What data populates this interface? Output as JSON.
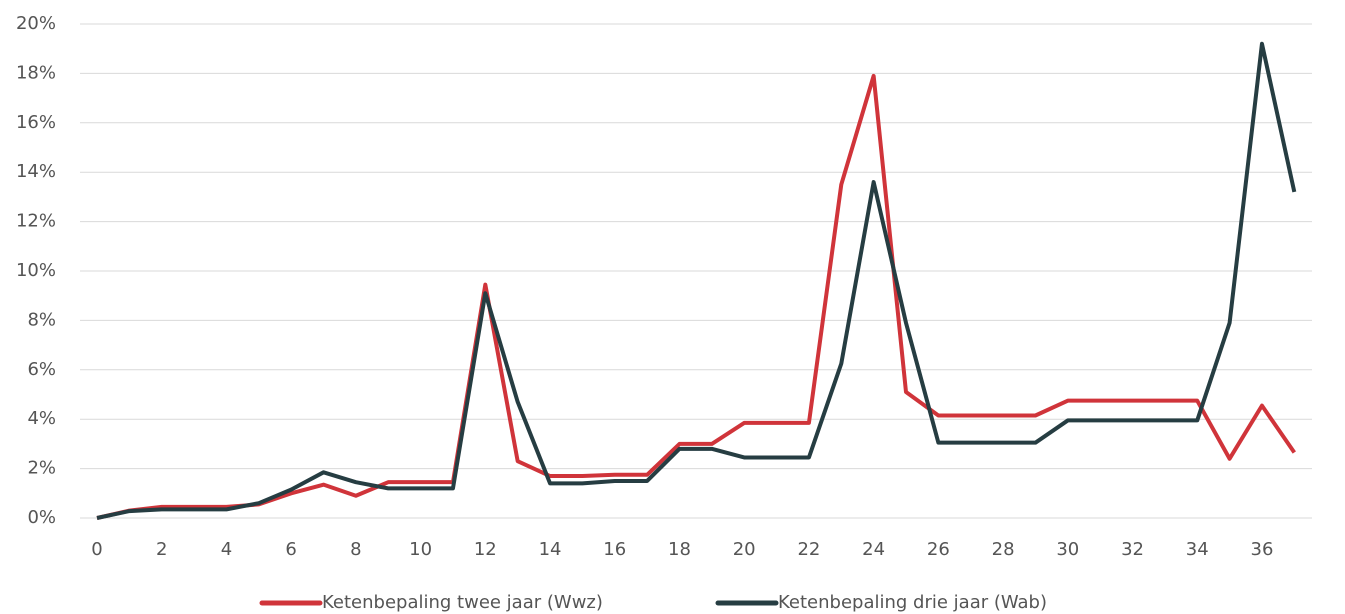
{
  "chart_data": {
    "type": "line",
    "x": [
      0,
      1,
      2,
      3,
      4,
      5,
      6,
      7,
      8,
      9,
      10,
      11,
      12,
      13,
      14,
      15,
      16,
      17,
      18,
      19,
      20,
      21,
      22,
      23,
      24,
      25,
      26,
      27,
      28,
      29,
      30,
      31,
      32,
      33,
      34,
      35,
      36,
      37
    ],
    "series": [
      {
        "name": "Ketenbepaling twee jaar (Wwz)",
        "color": "#d0343a",
        "values": [
          0,
          0.3,
          0.45,
          0.45,
          0.45,
          0.55,
          1.0,
          1.35,
          0.9,
          1.45,
          1.45,
          1.45,
          9.45,
          2.3,
          1.7,
          1.7,
          1.75,
          1.75,
          3.0,
          3.0,
          3.85,
          3.85,
          3.85,
          13.5,
          17.9,
          5.1,
          4.15,
          4.15,
          4.15,
          4.15,
          4.75,
          4.75,
          4.75,
          4.75,
          4.75,
          2.4,
          4.55,
          2.65
        ]
      },
      {
        "name": "Ketenbepaling drie jaar (Wab)",
        "color": "#263d42",
        "values": [
          0,
          0.28,
          0.35,
          0.35,
          0.35,
          0.6,
          1.15,
          1.85,
          1.45,
          1.2,
          1.2,
          1.2,
          9.1,
          4.7,
          1.4,
          1.4,
          1.5,
          1.5,
          2.8,
          2.8,
          2.45,
          2.45,
          2.45,
          6.25,
          13.6,
          7.9,
          3.05,
          3.05,
          3.05,
          3.05,
          3.95,
          3.95,
          3.95,
          3.95,
          3.95,
          7.9,
          19.2,
          13.2
        ]
      }
    ],
    "xlim": [
      0,
      37
    ],
    "xticks": [
      0,
      2,
      4,
      6,
      8,
      10,
      12,
      14,
      16,
      18,
      20,
      22,
      24,
      26,
      28,
      30,
      32,
      34,
      36
    ],
    "ylim": [
      0,
      20
    ],
    "yticks": [
      {
        "value": 0,
        "label": "0%"
      },
      {
        "value": 2,
        "label": "2%"
      },
      {
        "value": 4,
        "label": "4%"
      },
      {
        "value": 6,
        "label": "6%"
      },
      {
        "value": 8,
        "label": "8%"
      },
      {
        "value": 10,
        "label": "10%"
      },
      {
        "value": 12,
        "label": "12%"
      },
      {
        "value": 14,
        "label": "14%"
      },
      {
        "value": 16,
        "label": "16%"
      },
      {
        "value": 18,
        "label": "18%"
      },
      {
        "value": 20,
        "label": "20%"
      }
    ],
    "grid": true,
    "legend": "bottom"
  }
}
